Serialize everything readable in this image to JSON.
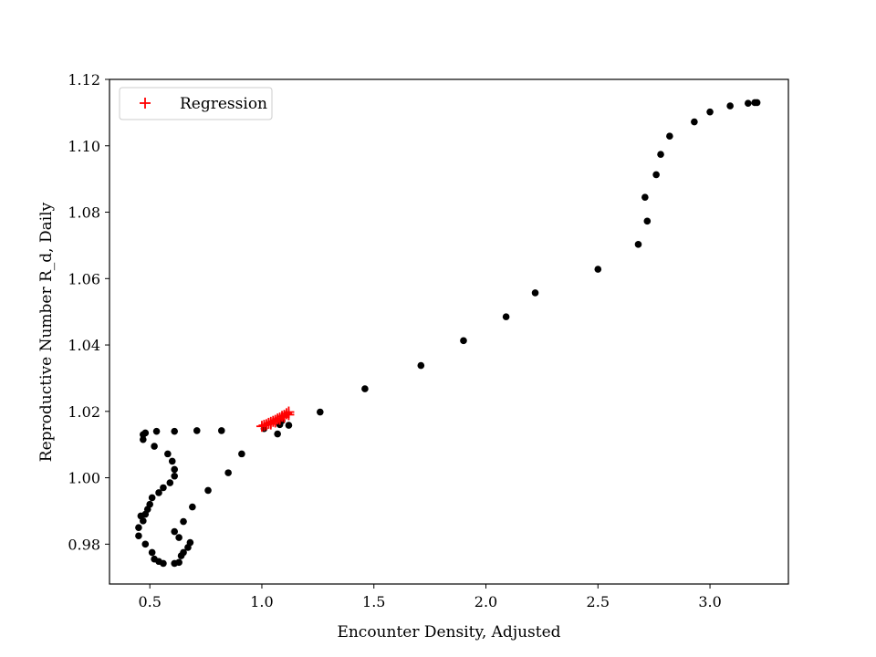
{
  "chart_data": {
    "type": "scatter",
    "title": "",
    "xlabel": "Encounter Density, Adjusted",
    "ylabel": "Reproductive Number R_d, Daily",
    "xlim": [
      0.32,
      3.35
    ],
    "ylim": [
      0.968,
      1.12
    ],
    "xticks": [
      "0.5",
      "1.0",
      "1.5",
      "2.0",
      "2.5",
      "3.0"
    ],
    "yticks": [
      "0.98",
      "1.00",
      "1.02",
      "1.04",
      "1.06",
      "1.08",
      "1.10",
      "1.12"
    ],
    "legend": {
      "position": "top-left",
      "entries": [
        "Regression"
      ]
    },
    "grid": false,
    "series": [
      {
        "marker": "dot",
        "color": "#000000",
        "points": [
          [
            0.47,
            1.013
          ],
          [
            0.48,
            1.0135
          ],
          [
            0.47,
            1.0115
          ],
          [
            0.53,
            1.014
          ],
          [
            0.61,
            1.014
          ],
          [
            0.71,
            1.0142
          ],
          [
            0.82,
            1.0142
          ],
          [
            0.52,
            1.0095
          ],
          [
            0.58,
            1.0072
          ],
          [
            0.6,
            1.005
          ],
          [
            0.61,
            1.0025
          ],
          [
            0.61,
            1.0005
          ],
          [
            0.59,
            0.9985
          ],
          [
            0.56,
            0.997
          ],
          [
            0.54,
            0.9955
          ],
          [
            0.51,
            0.994
          ],
          [
            0.5,
            0.992
          ],
          [
            0.49,
            0.9905
          ],
          [
            0.48,
            0.989
          ],
          [
            0.46,
            0.9885
          ],
          [
            0.47,
            0.987
          ],
          [
            0.45,
            0.985
          ],
          [
            0.45,
            0.9825
          ],
          [
            0.48,
            0.98
          ],
          [
            0.51,
            0.9775
          ],
          [
            0.52,
            0.9755
          ],
          [
            0.54,
            0.9748
          ],
          [
            0.56,
            0.9742
          ],
          [
            0.61,
            0.9742
          ],
          [
            0.63,
            0.9745
          ],
          [
            0.64,
            0.9765
          ],
          [
            0.65,
            0.9775
          ],
          [
            0.67,
            0.979
          ],
          [
            0.68,
            0.9805
          ],
          [
            0.63,
            0.982
          ],
          [
            0.61,
            0.9838
          ],
          [
            0.65,
            0.9868
          ],
          [
            0.69,
            0.9912
          ],
          [
            0.76,
            0.9962
          ],
          [
            0.85,
            1.0015
          ],
          [
            0.91,
            1.0072
          ],
          [
            1.01,
            1.0148
          ],
          [
            1.07,
            1.0132
          ],
          [
            1.08,
            1.016
          ],
          [
            1.09,
            1.0172
          ],
          [
            1.12,
            1.0158
          ],
          [
            1.26,
            1.0198
          ],
          [
            1.46,
            1.0268
          ],
          [
            1.71,
            1.0338
          ],
          [
            1.9,
            1.0413
          ],
          [
            2.09,
            1.0485
          ],
          [
            2.22,
            1.0557
          ],
          [
            2.5,
            1.0628
          ],
          [
            2.68,
            1.0703
          ],
          [
            2.72,
            1.0773
          ],
          [
            2.71,
            1.0845
          ],
          [
            2.76,
            1.0913
          ],
          [
            2.78,
            1.0974
          ],
          [
            2.82,
            1.1029
          ],
          [
            2.93,
            1.1072
          ],
          [
            3.0,
            1.1102
          ],
          [
            3.09,
            1.112
          ],
          [
            3.17,
            1.1128
          ],
          [
            3.2,
            1.113
          ],
          [
            3.21,
            1.113
          ]
        ]
      },
      {
        "name": "Regression",
        "marker": "plus",
        "color": "#ff0000",
        "points": [
          [
            1.0,
            1.0155
          ],
          [
            1.01,
            1.0158
          ],
          [
            1.02,
            1.016
          ],
          [
            1.03,
            1.0164
          ],
          [
            1.04,
            1.0167
          ],
          [
            1.05,
            1.017
          ],
          [
            1.06,
            1.0173
          ],
          [
            1.07,
            1.0177
          ],
          [
            1.08,
            1.018
          ],
          [
            1.09,
            1.0185
          ],
          [
            1.1,
            1.0188
          ],
          [
            1.11,
            1.0193
          ],
          [
            1.12,
            1.0198
          ],
          [
            1.04,
            1.0162
          ],
          [
            1.06,
            1.0168
          ],
          [
            1.08,
            1.0176
          ],
          [
            1.1,
            1.0183
          ],
          [
            1.12,
            1.019
          ]
        ]
      }
    ]
  }
}
